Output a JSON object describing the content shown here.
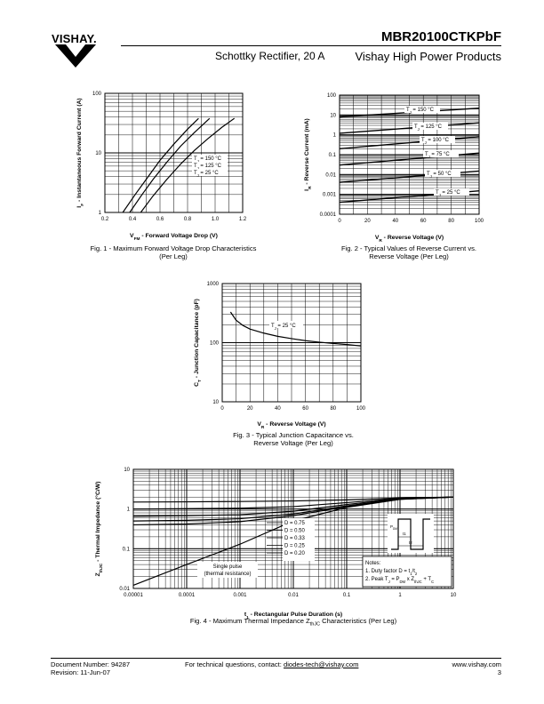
{
  "header": {
    "logo_text": "VISHAY.",
    "part_number": "MBR20100CTKPbF",
    "subtitle": "Schottky Rectifier, 20 A",
    "brand": "Vishay High Power Products"
  },
  "chart_data": [
    {
      "type": "line",
      "title": "Fig. 1 - Maximum Forward Voltage Drop Characteristics (Per Leg)",
      "caption_lines": [
        "Fig. 1 - Maximum Forward Voltage Drop Characteristics",
        "(Per Leg)"
      ],
      "xlabel": "VFM - Forward Voltage Drop (V)",
      "xlabel_main": "V",
      "xlabel_sub": "FM",
      "xlabel_rest": " - Forward Voltage Drop (V)",
      "ylabel": "IF - Instantaneous Forward Current (A)",
      "ylabel_main": "I",
      "ylabel_sub": "F",
      "ylabel_rest": " - Instantaneous Forward Current (A)",
      "x_scale": "linear",
      "y_scale": "log",
      "xlim": [
        0.2,
        1.2
      ],
      "ylim": [
        1,
        100
      ],
      "xticks": [
        "0.2",
        "0.4",
        "0.6",
        "0.8",
        "1.0",
        "1.2"
      ],
      "yticks": [
        "1",
        "10",
        "100"
      ],
      "legend": [
        "TJ = 150 °C",
        "TJ = 125 °C",
        "TJ = 25 °C"
      ],
      "legend_parts": [
        [
          "T",
          "J",
          " = 150 °C"
        ],
        [
          "T",
          "J",
          " = 125 °C"
        ],
        [
          "T",
          "J",
          " = 25 °C"
        ]
      ],
      "series": [
        {
          "name": "TJ = 150 °C",
          "x": [
            0.33,
            0.42,
            0.5,
            0.6,
            0.7,
            0.8,
            0.88
          ],
          "y": [
            1,
            2,
            3.6,
            7.5,
            14,
            25,
            38
          ]
        },
        {
          "name": "TJ = 125 °C",
          "x": [
            0.38,
            0.47,
            0.55,
            0.65,
            0.75,
            0.85,
            0.96
          ],
          "y": [
            1,
            2,
            3.6,
            7,
            13,
            22,
            38
          ]
        },
        {
          "name": "TJ = 25 °C",
          "x": [
            0.46,
            0.55,
            0.65,
            0.75,
            0.85,
            0.95,
            1.05,
            1.14
          ],
          "y": [
            1,
            1.9,
            3.6,
            6.5,
            11,
            17.5,
            27,
            38
          ]
        }
      ]
    },
    {
      "type": "line",
      "title": "Fig. 2 - Typical Values of Reverse Current vs. Reverse Voltage (Per Leg)",
      "caption_lines": [
        "Fig. 2 - Typical Values of Reverse Current vs.",
        "Reverse Voltage (Per Leg)"
      ],
      "xlabel": "VR - Reverse Voltage (V)",
      "xlabel_main": "V",
      "xlabel_sub": "R",
      "xlabel_rest": " - Reverse Voltage (V)",
      "ylabel": "IR - Reverse Current (mA)",
      "ylabel_main": "I",
      "ylabel_sub": "R",
      "ylabel_rest": " - Reverse Current (mA)",
      "x_scale": "linear",
      "y_scale": "log",
      "xlim": [
        0,
        100
      ],
      "ylim": [
        0.0001,
        100
      ],
      "xticks": [
        "0",
        "20",
        "40",
        "60",
        "80",
        "100"
      ],
      "yticks": [
        "0.0001",
        "0.001",
        "0.01",
        "0.1",
        "1",
        "10",
        "100"
      ],
      "legend_parts": [
        [
          "T",
          "J",
          " = 150 °C"
        ],
        [
          "T",
          "J",
          " = 125 °C"
        ],
        [
          "T",
          "J",
          " = 100 °C"
        ],
        [
          "T",
          "J",
          " = 75 °C"
        ],
        [
          "T",
          "J",
          " = 50 °C"
        ],
        [
          "T",
          "J",
          " = 25 °C"
        ]
      ],
      "series": [
        {
          "name": "TJ = 150 °C",
          "x": [
            0,
            100
          ],
          "y": [
            8,
            22
          ]
        },
        {
          "name": "TJ = 125 °C",
          "x": [
            0,
            100
          ],
          "y": [
            1.2,
            4
          ]
        },
        {
          "name": "TJ = 100 °C",
          "x": [
            0,
            100
          ],
          "y": [
            0.2,
            0.8
          ]
        },
        {
          "name": "TJ = 75 °C",
          "x": [
            0,
            100
          ],
          "y": [
            0.03,
            0.12
          ]
        },
        {
          "name": "TJ = 50 °C",
          "x": [
            0,
            100
          ],
          "y": [
            0.004,
            0.015
          ]
        },
        {
          "name": "TJ = 25 °C",
          "x": [
            0,
            100
          ],
          "y": [
            0.0004,
            0.0015
          ]
        }
      ]
    },
    {
      "type": "line",
      "title": "Fig. 3 - Typical Junction Capacitance vs. Reverse Voltage (Per Leg)",
      "caption_lines": [
        "Fig. 3 - Typical Junction Capacitance vs.",
        "Reverse Voltage (Per Leg)"
      ],
      "xlabel": "VR - Reverse Voltage (V)",
      "xlabel_main": "V",
      "xlabel_sub": "R",
      "xlabel_rest": " - Reverse Voltage (V)",
      "ylabel": "CT - Junction Capacitance (pF)",
      "ylabel_main": "C",
      "ylabel_sub": "T",
      "ylabel_rest": " - Junction Capacitance (pF)",
      "x_scale": "linear",
      "y_scale": "log",
      "xlim": [
        0,
        100
      ],
      "ylim": [
        10,
        1000
      ],
      "xticks": [
        "0",
        "20",
        "40",
        "60",
        "80",
        "100"
      ],
      "yticks": [
        "10",
        "100",
        "1000"
      ],
      "legend_parts": [
        [
          "T",
          "J",
          " = 25 °C"
        ]
      ],
      "series": [
        {
          "name": "TJ = 25 °C",
          "x": [
            6,
            10,
            15,
            20,
            30,
            40,
            50,
            60,
            70,
            80,
            90,
            100
          ],
          "y": [
            330,
            240,
            195,
            170,
            145,
            128,
            117,
            108,
            102,
            97,
            93,
            88
          ]
        }
      ]
    },
    {
      "type": "line",
      "title": "Fig. 4 - Maximum Thermal Impedance ZthJC Characteristics (Per Leg)",
      "caption_main": "Fig. 4 - Maximum Thermal Impedance Z",
      "caption_sub": "thJC",
      "caption_rest": " Characteristics (Per Leg)",
      "xlabel": "t1 - Rectangular Pulse Duration (s)",
      "xlabel_main": "t",
      "xlabel_sub": "1",
      "xlabel_rest": " - Rectangular Pulse Duration (s)",
      "ylabel": "ZthJC - Thermal Impedance (°C/W)",
      "ylabel_main": "Z",
      "ylabel_sub": "thJC",
      "ylabel_rest": " - Thermal Impedance (°C/W)",
      "x_scale": "log",
      "y_scale": "log",
      "xlim": [
        1e-05,
        10
      ],
      "ylim": [
        0.01,
        10
      ],
      "xticks": [
        "0.00001",
        "0.0001",
        "0.001",
        "0.01",
        "0.1",
        "1",
        "10"
      ],
      "yticks": [
        "0.01",
        "0.1",
        "1",
        "10"
      ],
      "legend": [
        "D = 0.75",
        "D = 0.50",
        "D = 0.33",
        "D = 0.25",
        "D = 0.20"
      ],
      "single_pulse_label": [
        "Single pulse",
        "(thermal resistance)"
      ],
      "notes": {
        "title": "Notes:",
        "line1": "1. Duty factor D = t1/t2",
        "line1_main": "1. Duty factor D = t",
        "line1_s1": "1",
        "line1_mid": "/t",
        "line1_s2": "2",
        "line2": "2. Peak TJ = PDM x ZthJC + TC",
        "line2_parts": [
          "2. Peak T",
          "J",
          " = P",
          "DM",
          " x Z",
          "thJC",
          " + T",
          "C"
        ]
      },
      "inset_labels": [
        "P",
        "DM",
        "t1",
        "t2"
      ],
      "series": [
        {
          "name": "D = 0.75",
          "x": [
            1e-05,
            0.0001,
            0.001,
            0.01,
            0.1,
            1,
            10
          ],
          "y": [
            1.5,
            1.52,
            1.55,
            1.6,
            1.7,
            1.9,
            2
          ]
        },
        {
          "name": "D = 0.50",
          "x": [
            1e-05,
            0.0001,
            0.001,
            0.01,
            0.1,
            1,
            10
          ],
          "y": [
            1,
            1.02,
            1.05,
            1.15,
            1.45,
            1.85,
            2
          ]
        },
        {
          "name": "D = 0.33",
          "x": [
            1e-05,
            0.0001,
            0.001,
            0.01,
            0.1,
            1,
            10
          ],
          "y": [
            0.66,
            0.68,
            0.72,
            0.88,
            1.3,
            1.8,
            2
          ]
        },
        {
          "name": "D = 0.25",
          "x": [
            1e-05,
            0.0001,
            0.001,
            0.01,
            0.1,
            1,
            10
          ],
          "y": [
            0.5,
            0.52,
            0.57,
            0.75,
            1.2,
            1.78,
            2
          ]
        },
        {
          "name": "D = 0.20",
          "x": [
            1e-05,
            0.0001,
            0.001,
            0.01,
            0.1,
            1,
            10
          ],
          "y": [
            0.4,
            0.42,
            0.48,
            0.68,
            1.15,
            1.76,
            2
          ]
        },
        {
          "name": "Single pulse (thermal resistance)",
          "x": [
            1e-05,
            0.0001,
            0.001,
            0.01,
            0.1,
            1,
            10
          ],
          "y": [
            0.012,
            0.04,
            0.13,
            0.5,
            1.1,
            1.75,
            2
          ]
        }
      ]
    }
  ],
  "footer": {
    "doc_number": "Document Number: 94287",
    "revision": "Revision: 11-Jun-07",
    "contact_prefix": "For technical questions, contact: ",
    "contact_email": "diodes-tech@vishay.com",
    "website": "www.vishay.com",
    "page": "3"
  }
}
